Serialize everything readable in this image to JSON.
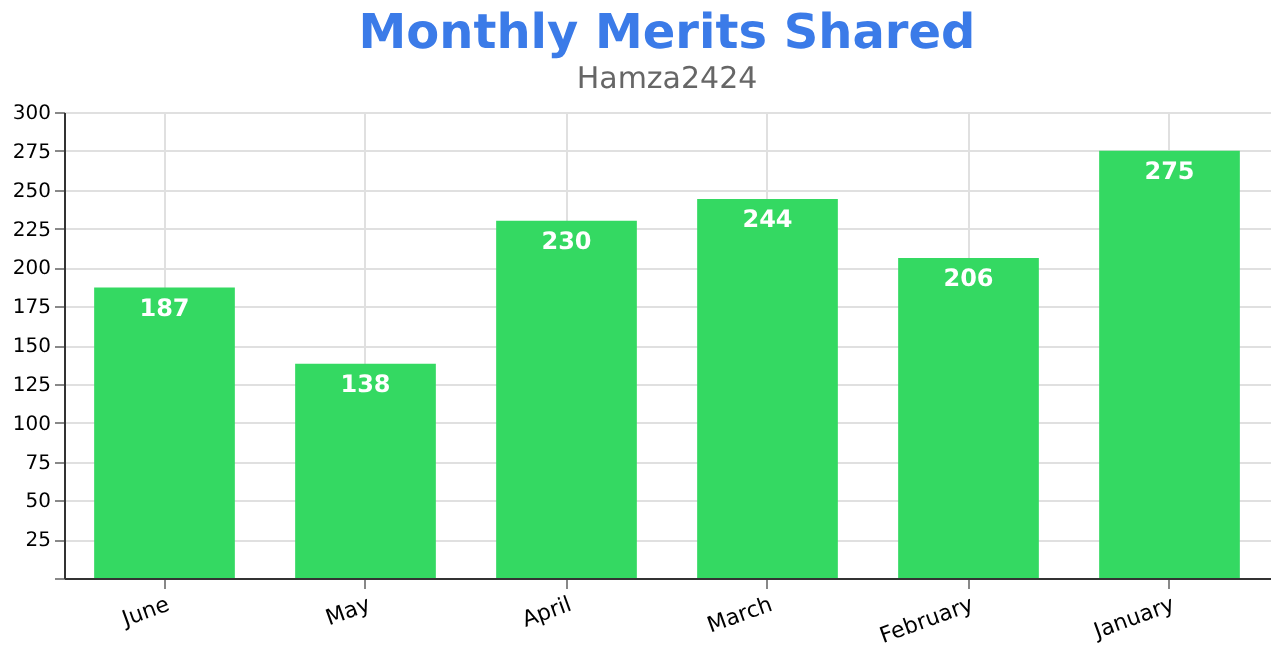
{
  "chart_data": {
    "type": "bar",
    "title": "Monthly Merits Shared",
    "subtitle": "Hamza2424",
    "categories": [
      "June",
      "May",
      "April",
      "March",
      "February",
      "January"
    ],
    "values": [
      187,
      138,
      230,
      244,
      206,
      275
    ],
    "color": "#34d962",
    "ylim": [
      0,
      300
    ],
    "yticks": [
      {
        "value": 0,
        "label": null
      },
      25,
      50,
      75,
      100,
      125,
      150,
      175,
      200,
      225,
      250,
      275,
      300
    ],
    "grid": true,
    "data_labels": true
  }
}
